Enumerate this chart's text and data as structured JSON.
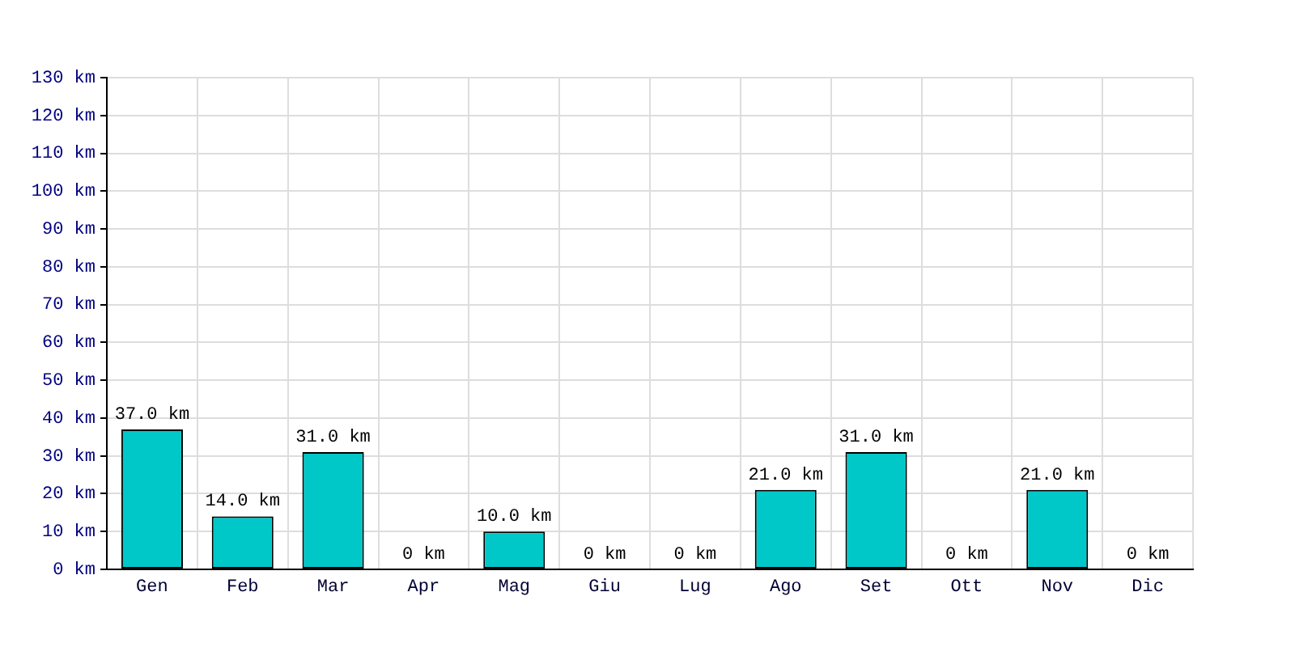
{
  "chart_data": {
    "type": "bar",
    "categories": [
      "Gen",
      "Feb",
      "Mar",
      "Apr",
      "Mag",
      "Giu",
      "Lug",
      "Ago",
      "Set",
      "Ott",
      "Nov",
      "Dic"
    ],
    "values": [
      37,
      14,
      31,
      0,
      10,
      0,
      0,
      21,
      31,
      0,
      21,
      0
    ],
    "value_labels": [
      "37.0 km",
      "14.0 km",
      "31.0 km",
      "0 km",
      "10.0 km",
      "0 km",
      "0 km",
      "21.0 km",
      "31.0 km",
      "0 km",
      "21.0 km",
      "0 km"
    ],
    "color": "#00c8c8",
    "ylim": [
      0,
      130
    ],
    "yticks": [
      {
        "value": 0,
        "label": "0 km"
      },
      {
        "value": 10,
        "label": "10 km"
      },
      {
        "value": 20,
        "label": "20 km"
      },
      {
        "value": 30,
        "label": "30 km"
      },
      {
        "value": 40,
        "label": "40 km"
      },
      {
        "value": 50,
        "label": "50 km"
      },
      {
        "value": 60,
        "label": "60 km"
      },
      {
        "value": 70,
        "label": "70 km"
      },
      {
        "value": 80,
        "label": "80 km"
      },
      {
        "value": 90,
        "label": "90 km"
      },
      {
        "value": 100,
        "label": "100 km"
      },
      {
        "value": 110,
        "label": "110 km"
      },
      {
        "value": 120,
        "label": "120 km"
      },
      {
        "value": 130,
        "label": "130 km"
      }
    ],
    "grid": true
  }
}
